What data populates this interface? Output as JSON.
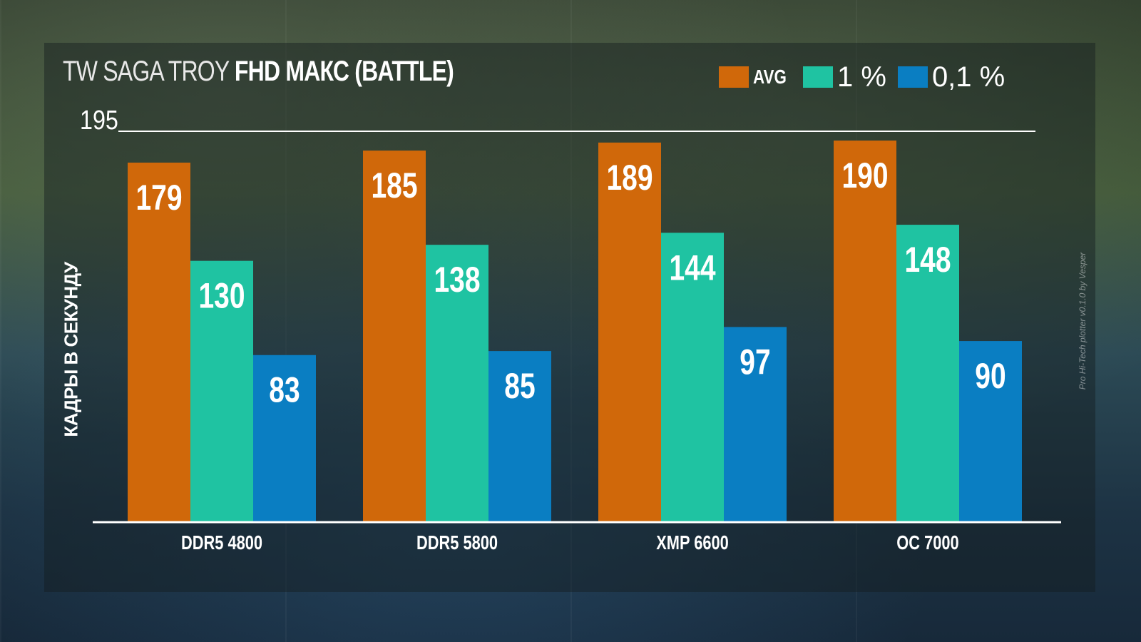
{
  "title": {
    "thin": "TW SAGA TROY",
    "bold": "FHD МАКС (BATTLE)"
  },
  "watermark": "Pro Hi-Tech plotter v0.1.0 by Vesper",
  "colors": {
    "avg": "#d0680a",
    "p1": "#1fc3a2",
    "p01": "#0a7ec2"
  },
  "chart_data": {
    "type": "bar",
    "title": "TW SAGA TROY FHD МАКС (BATTLE)",
    "ylabel": "КАДРЫ В СЕКУНДУ",
    "xlabel": "",
    "ylim": [
      0,
      195
    ],
    "yticks": [
      "195"
    ],
    "legend_position": "top-right",
    "categories": [
      "DDR5 4800",
      "DDR5 5800",
      "XMP 6600",
      "OC 7000"
    ],
    "series": [
      {
        "name": "AVG",
        "values": [
          179,
          185,
          189,
          190
        ]
      },
      {
        "name": "1 %",
        "values": [
          130,
          138,
          144,
          148
        ]
      },
      {
        "name": "0,1 %",
        "values": [
          83,
          85,
          97,
          90
        ]
      }
    ]
  }
}
